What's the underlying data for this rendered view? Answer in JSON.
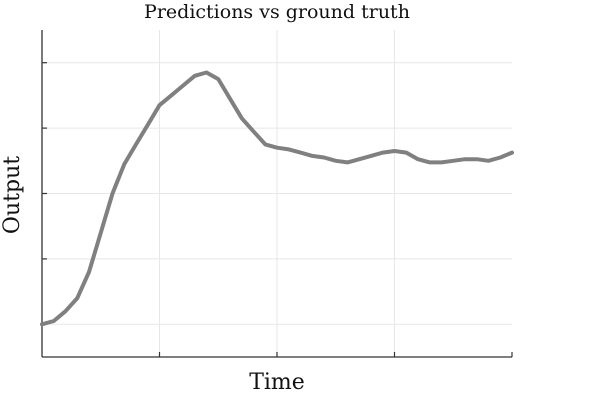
{
  "chart_data": {
    "type": "line",
    "title": "Predictions vs ground truth",
    "xlabel": "Time",
    "ylabel": "Output",
    "xlim": [
      0,
      40
    ],
    "ylim": [
      0,
      100
    ],
    "x_ticks": [
      10,
      20,
      30
    ],
    "y_ticks": [
      10,
      30,
      50,
      70,
      90
    ],
    "grid": true,
    "legend": "none",
    "colors": {
      "series": "#808080",
      "axis": "#333333",
      "grid": "#e7e7e7"
    },
    "series": [
      {
        "x": [
          0,
          1,
          2,
          3,
          4,
          5,
          6,
          7,
          8,
          9,
          10,
          11,
          12,
          13,
          14,
          15,
          16,
          17,
          18,
          19,
          20,
          21,
          22,
          23,
          24,
          25,
          26,
          27,
          28,
          29,
          30,
          31,
          32,
          33,
          34,
          35,
          36,
          37,
          38,
          39,
          40
        ],
        "values": [
          10,
          11,
          14,
          18,
          26,
          38,
          50,
          59,
          65,
          71,
          77,
          80,
          83,
          86,
          87,
          85,
          79,
          73,
          69,
          65,
          64,
          63.5,
          62.5,
          61.5,
          61,
          60,
          59.5,
          60.5,
          61.5,
          62.5,
          63,
          62.5,
          60.5,
          59.5,
          59.5,
          60,
          60.5,
          60.5,
          60,
          61,
          62.5
        ]
      }
    ]
  }
}
